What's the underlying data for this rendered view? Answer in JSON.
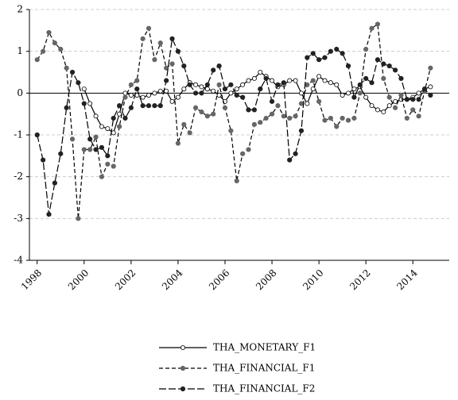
{
  "chart_data": {
    "type": "line",
    "x": [
      1998,
      1998.25,
      1998.5,
      1998.75,
      1999,
      1999.25,
      1999.5,
      1999.75,
      2000,
      2000.25,
      2000.5,
      2000.75,
      2001,
      2001.25,
      2001.5,
      2001.75,
      2002,
      2002.25,
      2002.5,
      2002.75,
      2003,
      2003.25,
      2003.5,
      2003.75,
      2004,
      2004.25,
      2004.5,
      2004.75,
      2005,
      2005.25,
      2005.5,
      2005.75,
      2006,
      2006.25,
      2006.5,
      2006.75,
      2007,
      2007.25,
      2007.5,
      2007.75,
      2008,
      2008.25,
      2008.5,
      2008.75,
      2009,
      2009.25,
      2009.5,
      2009.75,
      2010,
      2010.25,
      2010.5,
      2010.75,
      2011,
      2011.25,
      2011.5,
      2011.75,
      2012,
      2012.25,
      2012.5,
      2012.75,
      2013,
      2013.25,
      2013.5,
      2013.75,
      2014,
      2014.25,
      2014.5,
      2014.75
    ],
    "series": [
      {
        "name": "THA_MONETARY_F1",
        "color": "#000000",
        "dash": "solid",
        "marker": "open",
        "values": [
          null,
          null,
          null,
          null,
          null,
          null,
          null,
          null,
          0.1,
          -0.25,
          -0.55,
          -0.8,
          -0.85,
          -0.95,
          -0.5,
          0.0,
          -0.05,
          -0.05,
          -0.1,
          -0.05,
          0.0,
          0.05,
          0.05,
          -0.2,
          -0.1,
          0.1,
          0.25,
          0.2,
          0.15,
          0.1,
          0.05,
          -0.05,
          -0.2,
          0.0,
          0.1,
          0.2,
          0.3,
          0.35,
          0.5,
          0.4,
          0.3,
          0.15,
          0.2,
          0.3,
          0.3,
          0.0,
          -0.25,
          0.1,
          0.4,
          0.3,
          0.25,
          0.2,
          -0.05,
          0.0,
          0.1,
          0.15,
          -0.1,
          -0.3,
          -0.4,
          -0.45,
          -0.3,
          -0.2,
          -0.15,
          -0.15,
          -0.1,
          0.0,
          0.1,
          0.15
        ]
      },
      {
        "name": "THA_FINANCIAL_F1",
        "color": "#000000",
        "dash": "dashed",
        "marker": "gray",
        "values": [
          0.8,
          1.0,
          1.45,
          1.2,
          1.05,
          0.6,
          -1.1,
          -3.0,
          -1.35,
          -1.35,
          -1.05,
          -2.0,
          -1.7,
          -1.75,
          -0.8,
          -0.1,
          0.2,
          0.3,
          1.3,
          1.55,
          0.8,
          1.2,
          0.6,
          0.7,
          -1.2,
          -0.75,
          -0.95,
          -0.35,
          -0.45,
          -0.55,
          -0.5,
          0.2,
          -0.35,
          -0.9,
          -2.1,
          -1.45,
          -1.35,
          -0.75,
          -0.7,
          -0.6,
          -0.5,
          -0.3,
          -0.55,
          -0.6,
          -0.55,
          -0.25,
          0.2,
          0.3,
          -0.2,
          -0.65,
          -0.6,
          -0.8,
          -0.6,
          -0.65,
          -0.6,
          0.0,
          1.05,
          1.55,
          1.65,
          0.35,
          -0.1,
          -0.35,
          -0.05,
          -0.6,
          -0.4,
          -0.55,
          0.05,
          0.6
        ]
      },
      {
        "name": "THA_FINANCIAL_F2",
        "color": "#000000",
        "dash": "longdash",
        "marker": "filled",
        "values": [
          -1.0,
          -1.6,
          -2.9,
          -2.15,
          -1.45,
          -0.35,
          0.5,
          0.25,
          -0.25,
          -1.1,
          -1.35,
          -1.3,
          -1.5,
          -0.6,
          -0.3,
          -0.6,
          -0.35,
          0.1,
          -0.3,
          -0.3,
          -0.3,
          -0.3,
          0.3,
          1.3,
          1.0,
          0.65,
          0.2,
          0.0,
          0.0,
          0.2,
          0.55,
          0.65,
          0.1,
          0.2,
          -0.05,
          -0.1,
          -0.4,
          -0.4,
          0.1,
          0.35,
          -0.2,
          0.2,
          0.25,
          -1.6,
          -1.45,
          -0.9,
          0.85,
          0.95,
          0.8,
          0.85,
          1.0,
          1.05,
          0.95,
          0.65,
          -0.1,
          0.2,
          0.35,
          0.25,
          0.8,
          0.7,
          0.65,
          0.55,
          0.35,
          -0.15,
          -0.15,
          -0.15,
          0.1,
          -0.05
        ]
      }
    ],
    "xlim": [
      1997.67,
      2015.55
    ],
    "xticks": [
      1998,
      2000,
      2002,
      2004,
      2006,
      2008,
      2010,
      2012,
      2014
    ],
    "ylim": [
      -4,
      2
    ],
    "yticks": [
      -4,
      -3,
      -2,
      -1,
      0,
      1,
      2
    ],
    "grid": true
  }
}
